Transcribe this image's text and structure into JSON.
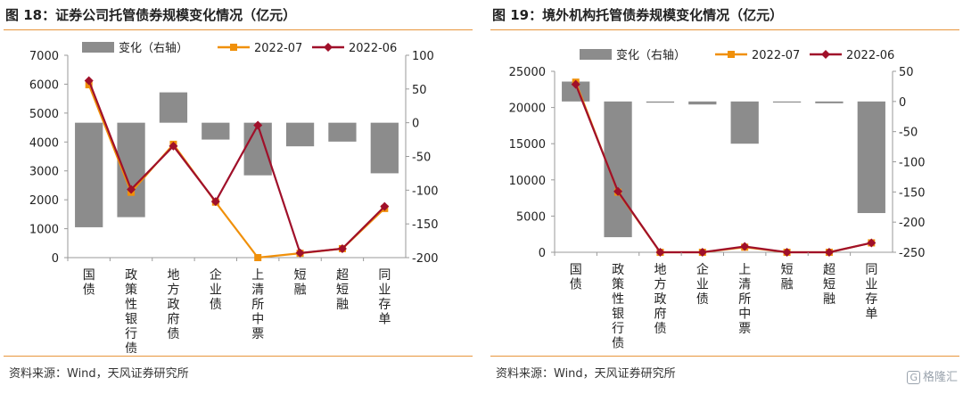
{
  "colors": {
    "bar": "#8c8c8c",
    "line_2022_07": "#f0900a",
    "line_2022_06": "#a0102a",
    "accent_rule": "#e8953c"
  },
  "charts": [
    {
      "title": "图 18：证券公司托管债券规模变化情况（亿元）",
      "source": "资料来源：Wind，天风证券研究所",
      "chart_data": {
        "type": "bar+line",
        "categories": [
          "国债",
          "政策性银行债",
          "地方政府债",
          "企业债",
          "上清所中票",
          "短融",
          "超短融",
          "同业存单"
        ],
        "legend": [
          "变化（右轴）",
          "2022-07",
          "2022-06"
        ],
        "legend_position": "top",
        "y_left": {
          "ticks": [
            "7000",
            "6000",
            "5000",
            "4000",
            "3000",
            "2000",
            "1000",
            "0"
          ],
          "min": 0,
          "max": 7000
        },
        "y_right": {
          "ticks": [
            "100",
            "50",
            "0",
            "-50",
            "-100",
            "-150",
            "-200"
          ],
          "min": -200,
          "max": 100
        },
        "series": [
          {
            "name": "变化（右轴）",
            "axis": "right",
            "kind": "bar",
            "values": [
              -155,
              -140,
              45,
              -25,
              -78,
              -35,
              -28,
              -75
            ]
          },
          {
            "name": "2022-07",
            "axis": "left",
            "kind": "line",
            "values": [
              5980,
              2260,
              3920,
              1920,
              -1,
              150,
              310,
              1700
            ]
          },
          {
            "name": "2022-06",
            "axis": "left",
            "kind": "line",
            "values": [
              6120,
              2360,
              3860,
              1940,
              4580,
              160,
              310,
              1770
            ]
          }
        ]
      }
    },
    {
      "title": "图 19：境外机构托管债券规模变化情况（亿元）",
      "source": "资料来源：Wind，天风证券研究所",
      "watermark": "格隆汇",
      "watermark_box": "G",
      "chart_data": {
        "type": "bar+line",
        "categories": [
          "国债",
          "政策性银行债",
          "地方政府债",
          "企业债",
          "上清所中票",
          "短融",
          "超短融",
          "同业存单"
        ],
        "legend": [
          "变化（右轴）",
          "2022-07",
          "2022-06"
        ],
        "legend_position": "top",
        "y_left": {
          "ticks": [
            "25000",
            "20000",
            "15000",
            "10000",
            "5000",
            "0"
          ],
          "min": 0,
          "max": 25000
        },
        "y_right": {
          "ticks": [
            "50",
            "0",
            "-50",
            "-100",
            "-150",
            "-200",
            "-250"
          ],
          "min": -250,
          "max": 50
        },
        "series": [
          {
            "name": "变化（右轴）",
            "axis": "right",
            "kind": "bar",
            "values": [
              33,
              -225,
              -2,
              -5,
              -70,
              -1,
              -3,
              -185
            ]
          },
          {
            "name": "2022-07",
            "axis": "left",
            "kind": "line",
            "values": [
              23500,
              8300,
              0,
              0,
              700,
              0,
              0,
              1300
            ]
          },
          {
            "name": "2022-06",
            "axis": "left",
            "kind": "line",
            "values": [
              23200,
              8400,
              0,
              0,
              800,
              0,
              0,
              1300
            ]
          }
        ]
      }
    }
  ]
}
